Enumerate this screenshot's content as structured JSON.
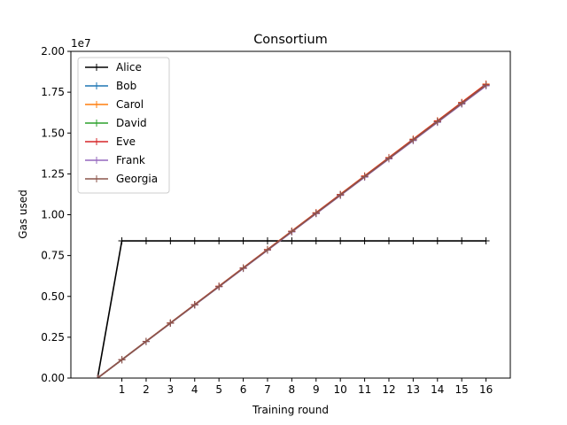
{
  "chart_data": {
    "type": "line",
    "title": "Consortium",
    "xlabel": "Training round",
    "ylabel": "Gas used",
    "y_offset_label": "1e7",
    "x": [
      0,
      1,
      2,
      3,
      4,
      5,
      6,
      7,
      8,
      9,
      10,
      11,
      12,
      13,
      14,
      15,
      16
    ],
    "xlim": [
      -1.1,
      17.0
    ],
    "ylim": [
      0,
      20000000
    ],
    "x_ticks": [
      1,
      2,
      3,
      4,
      5,
      6,
      7,
      8,
      9,
      10,
      11,
      12,
      13,
      14,
      15,
      16
    ],
    "x_tick_labels": [
      "1",
      "2",
      "3",
      "4",
      "5",
      "6",
      "7",
      "8",
      "9",
      "10",
      "11",
      "12",
      "13",
      "14",
      "15",
      "16"
    ],
    "y_ticks": [
      0,
      2500000,
      5000000,
      7500000,
      10000000,
      12500000,
      15000000,
      17500000,
      20000000
    ],
    "y_tick_labels": [
      "0.00",
      "0.25",
      "0.50",
      "0.75",
      "1.00",
      "1.25",
      "1.50",
      "1.75",
      "2.00"
    ],
    "grid": false,
    "legend_position": "top-left",
    "marker": "+",
    "series": [
      {
        "name": "Alice",
        "color": "#000000",
        "values": [
          0,
          8400000,
          8400000,
          8400000,
          8400000,
          8400000,
          8400000,
          8400000,
          8400000,
          8400000,
          8400000,
          8400000,
          8400000,
          8400000,
          8400000,
          8400000,
          8400000
        ]
      },
      {
        "name": "Bob",
        "color": "#1f77b4",
        "values": [
          0,
          1120000,
          2240000,
          3360000,
          4480000,
          5600000,
          6720000,
          7840000,
          8960000,
          10080000,
          11200000,
          12320000,
          13440000,
          14560000,
          15680000,
          16800000,
          17920000
        ]
      },
      {
        "name": "Carol",
        "color": "#ff7f0e",
        "values": [
          0,
          1125000,
          2250000,
          3375000,
          4500000,
          5625000,
          6750000,
          7875000,
          9000000,
          10125000,
          11250000,
          12375000,
          13500000,
          14625000,
          15750000,
          16875000,
          18000000
        ]
      },
      {
        "name": "David",
        "color": "#2ca02c",
        "values": [
          0,
          1122000,
          2244000,
          3366000,
          4488000,
          5610000,
          6732000,
          7854000,
          8976000,
          10098000,
          11220000,
          12342000,
          13464000,
          14586000,
          15708000,
          16830000,
          17952000
        ]
      },
      {
        "name": "Eve",
        "color": "#d62728",
        "values": [
          0,
          1124000,
          2248000,
          3372000,
          4496000,
          5620000,
          6744000,
          7868000,
          8992000,
          10116000,
          11240000,
          12364000,
          13488000,
          14612000,
          15736000,
          16860000,
          17984000
        ]
      },
      {
        "name": "Frank",
        "color": "#9467bd",
        "values": [
          0,
          1118000,
          2236000,
          3354000,
          4472000,
          5590000,
          6708000,
          7826000,
          8944000,
          10062000,
          11180000,
          12298000,
          13416000,
          14534000,
          15652000,
          16770000,
          17888000
        ]
      },
      {
        "name": "Georgia",
        "color": "#8c564b",
        "values": [
          0,
          1121000,
          2242000,
          3363000,
          4484000,
          5605000,
          6726000,
          7847000,
          8968000,
          10089000,
          11210000,
          12331000,
          13452000,
          14573000,
          15694000,
          16815000,
          17936000
        ]
      }
    ]
  }
}
